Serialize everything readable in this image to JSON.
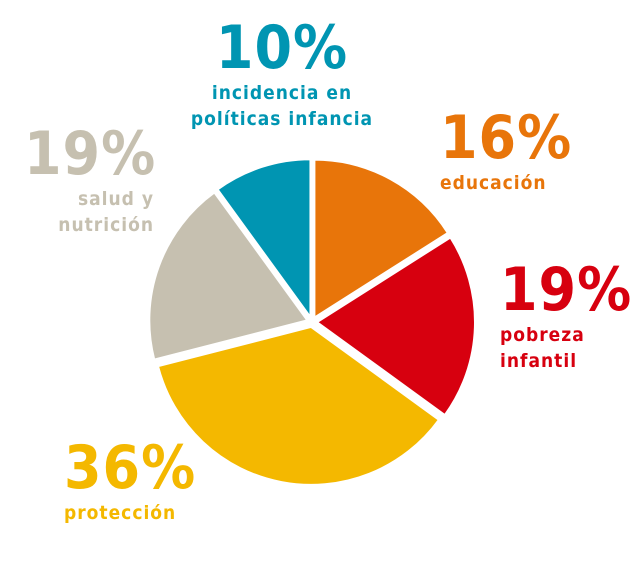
{
  "chart_data": {
    "type": "pie",
    "slices": [
      {
        "pct_label": "16%",
        "value": 16,
        "label": "educación",
        "color": "#e8750a"
      },
      {
        "pct_label": "19%",
        "value": 19,
        "label": [
          "pobreza",
          "infantil"
        ],
        "color": "#d7000f"
      },
      {
        "pct_label": "36%",
        "value": 36,
        "label": "protección",
        "color": "#f4b800"
      },
      {
        "pct_label": "19%",
        "value": 19,
        "label": [
          "salud y",
          "nutrición"
        ],
        "color": "#c6c0b0"
      },
      {
        "pct_label": "10%",
        "value": 10,
        "label": [
          "incidencia en",
          "políticas infancia"
        ],
        "color": "#0095b2"
      }
    ]
  }
}
